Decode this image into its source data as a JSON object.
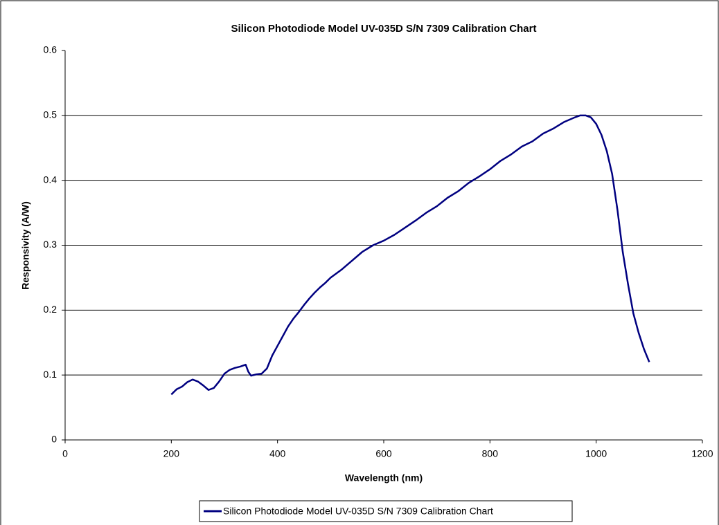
{
  "chart_data": {
    "type": "line",
    "title": "Silicon Photodiode Model UV-035D S/N 7309 Calibration Chart",
    "x_label": "Wavelength (nm)",
    "y_label": "Responsivity (A/W)",
    "x": [
      200,
      210,
      220,
      230,
      240,
      250,
      260,
      270,
      280,
      290,
      300,
      310,
      320,
      330,
      340,
      345,
      350,
      360,
      370,
      380,
      390,
      400,
      410,
      420,
      430,
      440,
      450,
      460,
      470,
      480,
      490,
      500,
      520,
      540,
      560,
      580,
      600,
      620,
      640,
      660,
      680,
      700,
      720,
      740,
      760,
      780,
      800,
      820,
      840,
      860,
      880,
      900,
      920,
      940,
      960,
      970,
      980,
      990,
      1000,
      1010,
      1020,
      1030,
      1040,
      1050,
      1060,
      1070,
      1080,
      1090,
      1100
    ],
    "series": [
      {
        "name": "Silicon Photodiode Model UV-035D S/N 7309 Calibration Chart",
        "color": "#000080",
        "values": [
          0.07,
          0.078,
          0.082,
          0.089,
          0.093,
          0.09,
          0.084,
          0.077,
          0.08,
          0.09,
          0.102,
          0.108,
          0.111,
          0.113,
          0.116,
          0.105,
          0.099,
          0.101,
          0.102,
          0.11,
          0.13,
          0.145,
          0.16,
          0.175,
          0.187,
          0.197,
          0.208,
          0.218,
          0.227,
          0.235,
          0.242,
          0.25,
          0.262,
          0.276,
          0.29,
          0.3,
          0.307,
          0.316,
          0.327,
          0.338,
          0.35,
          0.36,
          0.373,
          0.383,
          0.396,
          0.406,
          0.417,
          0.43,
          0.44,
          0.452,
          0.46,
          0.472,
          0.48,
          0.49,
          0.497,
          0.5,
          0.5,
          0.497,
          0.487,
          0.47,
          0.445,
          0.41,
          0.355,
          0.29,
          0.24,
          0.195,
          0.165,
          0.14,
          0.12
        ]
      }
    ],
    "xlim": [
      0,
      1200
    ],
    "xticks": [
      0,
      200,
      400,
      600,
      800,
      1000,
      1200
    ],
    "ylim": [
      0,
      0.6
    ],
    "yticks": [
      0,
      0.1,
      0.2,
      0.3,
      0.4,
      0.5,
      0.6
    ],
    "grid": true,
    "legend": "bottom"
  }
}
